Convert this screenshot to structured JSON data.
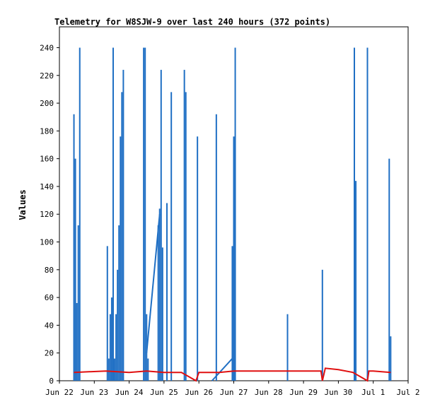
{
  "chart_data": {
    "type": "line",
    "title": "Telemetry for W8SJW-9 over last 240 hours (372 points)",
    "xlabel": "",
    "ylabel": "Values",
    "x_ticks": [
      "Jun 22",
      "Jun 23",
      "Jun 24",
      "Jun 25",
      "Jun 26",
      "Jun 27",
      "Jun 28",
      "Jun 29",
      "Jun 30",
      "Jul 1",
      "Jul 2"
    ],
    "y_ticks": [
      0,
      20,
      40,
      60,
      80,
      100,
      120,
      140,
      160,
      180,
      200,
      220,
      240
    ],
    "xlim": [
      "Jun 22 00:00",
      "Jul 2 00:00"
    ],
    "ylim": [
      0,
      255
    ],
    "grid": false,
    "colors": {
      "spikes": "#1f6fc4",
      "baseline": "#e01010",
      "axis": "#000000"
    },
    "series": [
      {
        "color": "#1f6fc4",
        "spikes": [
          [
            "Jun 22 10:00",
            192
          ],
          [
            "Jun 22 11:00",
            160
          ],
          [
            "Jun 22 12:00",
            56
          ],
          [
            "Jun 22 13:00",
            112
          ],
          [
            "Jun 22 14:00",
            240
          ],
          [
            "Jun 23 09:00",
            97
          ],
          [
            "Jun 23 10:00",
            16
          ],
          [
            "Jun 23 11:00",
            48
          ],
          [
            "Jun 23 12:00",
            60
          ],
          [
            "Jun 23 13:00",
            240
          ],
          [
            "Jun 23 14:00",
            16
          ],
          [
            "Jun 23 15:00",
            48
          ],
          [
            "Jun 23 16:00",
            80
          ],
          [
            "Jun 23 17:00",
            112
          ],
          [
            "Jun 23 18:00",
            176
          ],
          [
            "Jun 23 19:00",
            208
          ],
          [
            "Jun 23 20:00",
            224
          ],
          [
            "Jun 24 10:00",
            240
          ],
          [
            "Jun 24 11:00",
            240
          ],
          [
            "Jun 24 12:00",
            48
          ],
          [
            "Jun 24 13:00",
            16
          ],
          [
            "Jun 24 20:00",
            112
          ],
          [
            "Jun 24 21:00",
            124
          ],
          [
            "Jun 24 22:00",
            224
          ],
          [
            "Jun 24 23:00",
            96
          ],
          [
            "Jun 25 02:00",
            128
          ],
          [
            "Jun 25 05:00",
            208
          ],
          [
            "Jun 25 14:00",
            224
          ],
          [
            "Jun 25 15:00",
            208
          ],
          [
            "Jun 25 23:00",
            176
          ],
          [
            "Jun 26 12:00",
            192
          ],
          [
            "Jun 26 23:00",
            97
          ],
          [
            "Jun 27 00:00",
            176
          ],
          [
            "Jun 27 01:00",
            240
          ],
          [
            "Jun 28 13:00",
            48
          ],
          [
            "Jun 29 13:00",
            80
          ],
          [
            "Jun 30 11:00",
            240
          ],
          [
            "Jun 30 12:00",
            144
          ],
          [
            "Jun 30 20:00",
            240
          ],
          [
            "Jul 1 11:00",
            160
          ],
          [
            "Jul 1 12:00",
            32
          ]
        ],
        "ramps": [
          {
            "from": [
              "Jun 24 12:00",
              20
            ],
            "to": [
              "Jun 24 21:00",
              120
            ]
          },
          {
            "from": [
              "Jun 26 09:00",
              0
            ],
            "to": [
              "Jun 26 23:00",
              16
            ]
          }
        ]
      },
      {
        "color": "#e01010",
        "points": [
          [
            "Jun 22 10:00",
            6
          ],
          [
            "Jun 23 08:00",
            7
          ],
          [
            "Jun 24 00:00",
            6
          ],
          [
            "Jun 24 12:00",
            7
          ],
          [
            "Jun 25 00:00",
            6
          ],
          [
            "Jun 25 12:00",
            6
          ],
          [
            "Jun 25 22:00",
            0
          ],
          [
            "Jun 26 00:00",
            6
          ],
          [
            "Jun 26 14:00",
            6
          ],
          [
            "Jun 27 00:00",
            7
          ],
          [
            "Jun 28 00:00",
            7
          ],
          [
            "Jun 29 00:00",
            7
          ],
          [
            "Jun 29 12:00",
            7
          ],
          [
            "Jun 29 13:00",
            0
          ],
          [
            "Jun 29 15:00",
            9
          ],
          [
            "Jun 30 00:00",
            8
          ],
          [
            "Jun 30 10:00",
            6
          ],
          [
            "Jun 30 20:00",
            0
          ],
          [
            "Jun 30 21:00",
            7
          ],
          [
            "Jul 1 00:00",
            7
          ],
          [
            "Jul 1 12:00",
            6
          ]
        ]
      }
    ]
  }
}
